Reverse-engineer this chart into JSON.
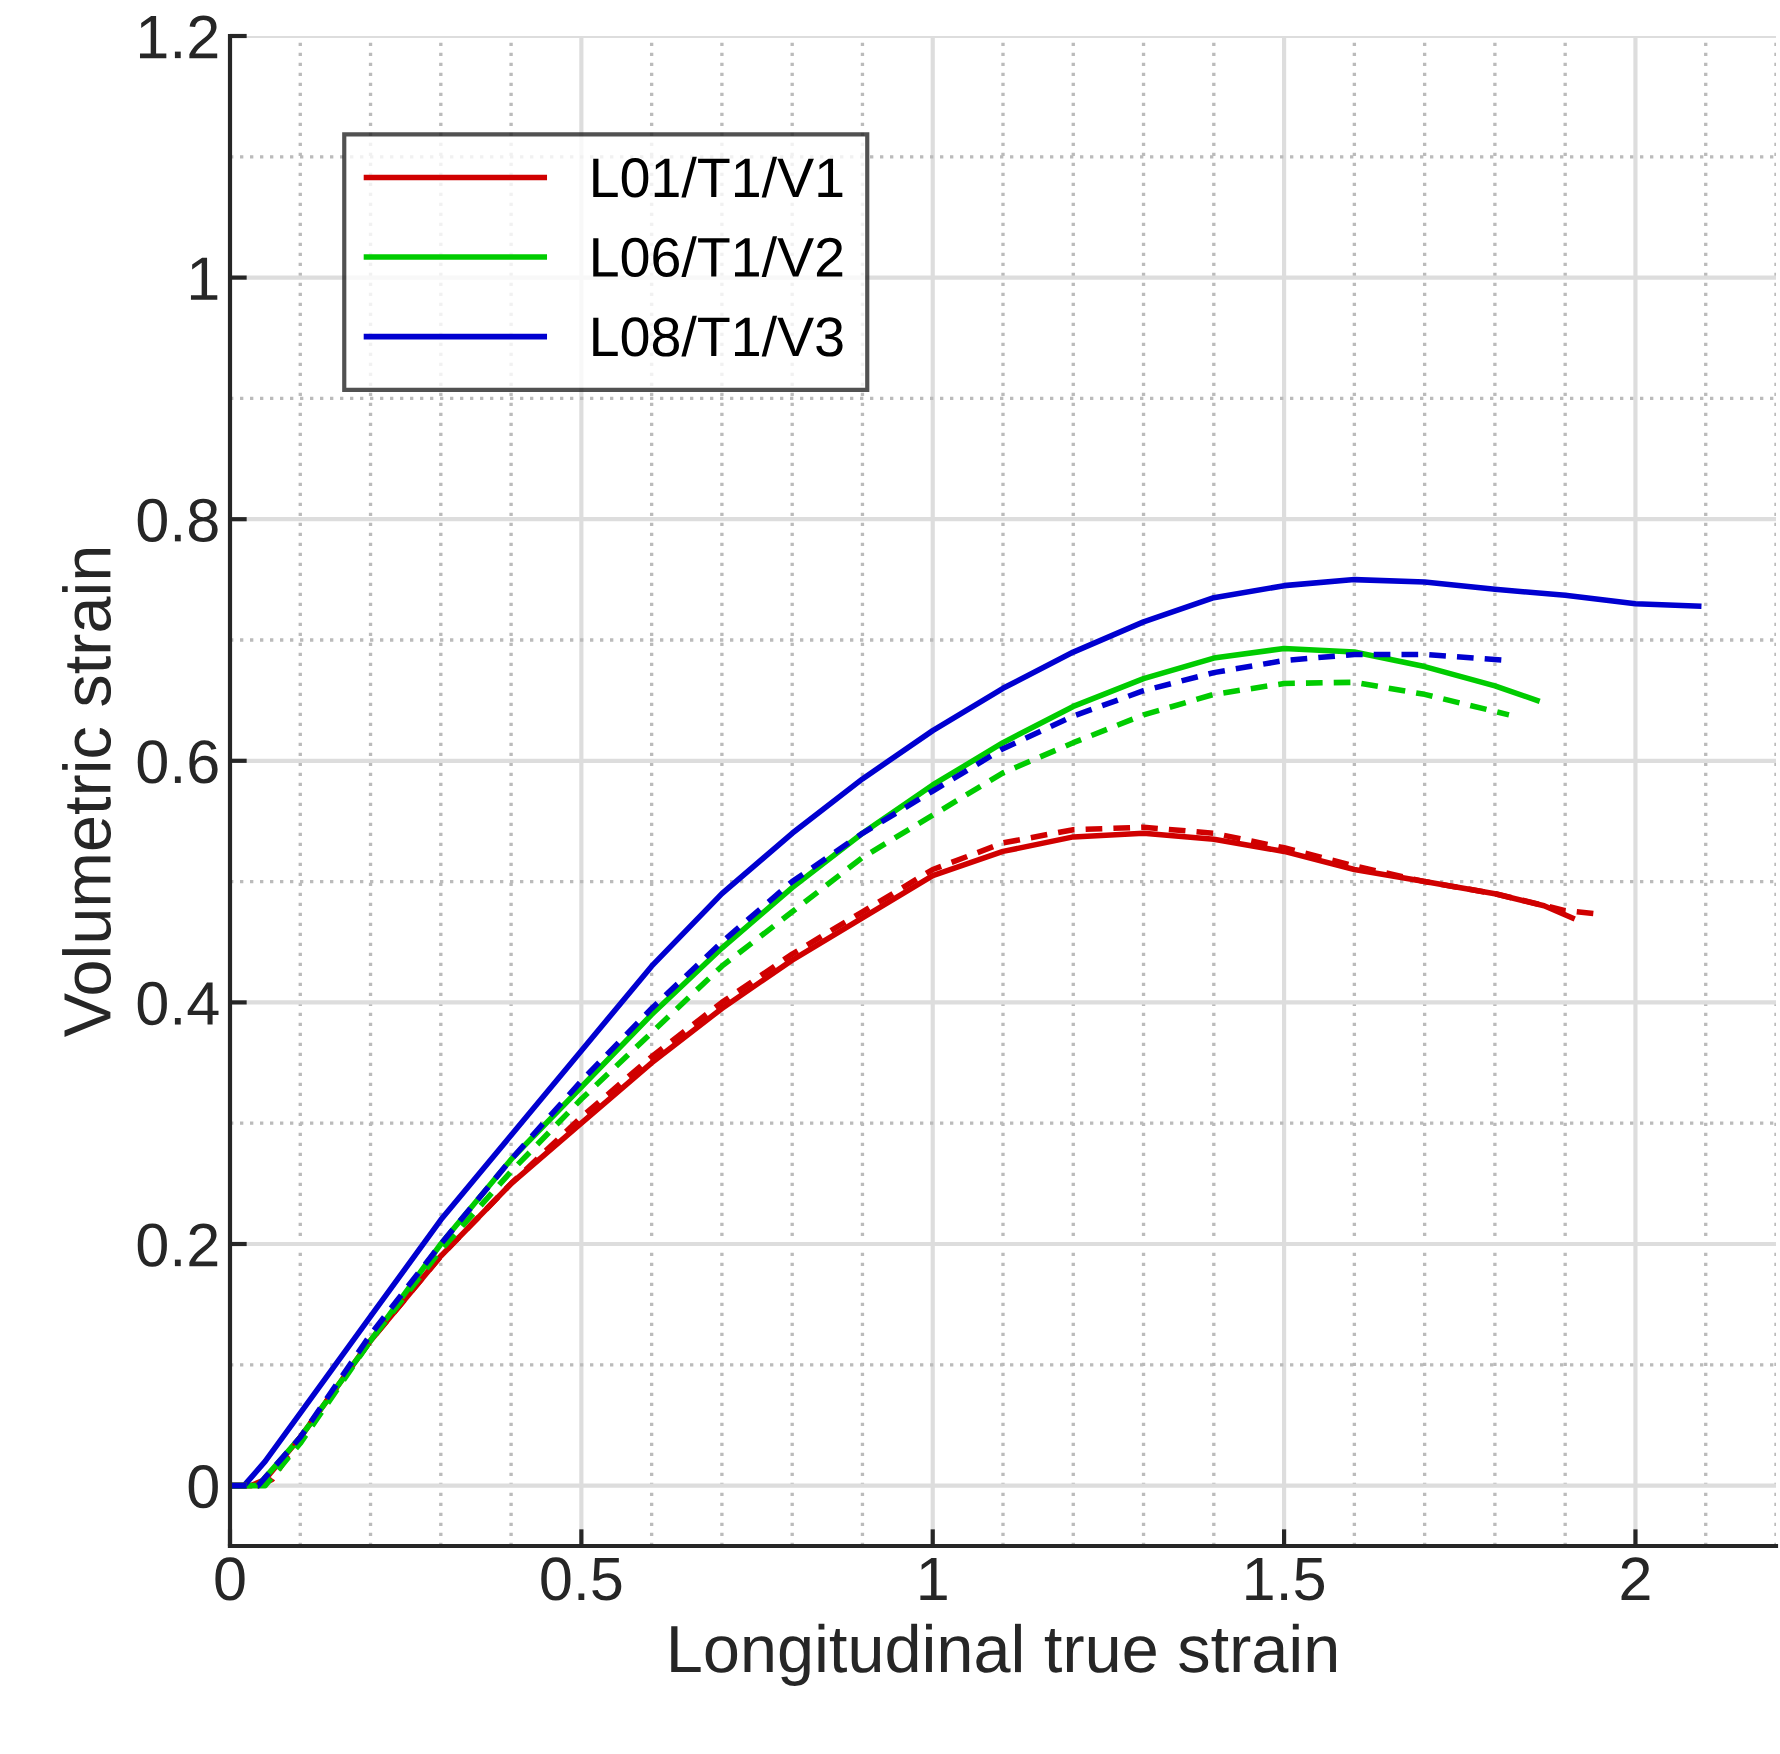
{
  "chart_data": {
    "type": "line",
    "xlabel": "Longitudinal true strain",
    "ylabel": "Volumetric strain",
    "xlim": [
      0,
      2.2
    ],
    "ylim": [
      -0.05,
      1.2
    ],
    "xticks": [
      0,
      0.5,
      1,
      1.5,
      2
    ],
    "yticks": [
      0,
      0.2,
      0.4,
      0.6,
      0.8,
      1,
      1.2
    ],
    "grid": true,
    "legend": "top left",
    "marker": "none",
    "series": [
      {
        "name": "L01/T1/V1",
        "color": "#d00000",
        "line_style": "solid",
        "x": [
          0,
          0.03,
          0.05,
          0.1,
          0.2,
          0.3,
          0.4,
          0.5,
          0.6,
          0.7,
          0.8,
          0.9,
          1.0,
          1.1,
          1.2,
          1.3,
          1.4,
          1.5,
          1.6,
          1.7,
          1.8,
          1.87,
          1.91
        ],
        "values": [
          0,
          0,
          0.005,
          0.04,
          0.12,
          0.19,
          0.25,
          0.3,
          0.35,
          0.395,
          0.435,
          0.47,
          0.505,
          0.525,
          0.537,
          0.54,
          0.535,
          0.525,
          0.51,
          0.5,
          0.49,
          0.48,
          0.47
        ]
      },
      {
        "name": "L06/T1/V2",
        "color": "#00cc00",
        "line_style": "solid",
        "x": [
          0,
          0.04,
          0.1,
          0.2,
          0.3,
          0.4,
          0.5,
          0.6,
          0.7,
          0.8,
          0.9,
          1.0,
          1.1,
          1.2,
          1.3,
          1.4,
          1.5,
          1.6,
          1.7,
          1.8,
          1.86
        ],
        "values": [
          0,
          0,
          0.04,
          0.12,
          0.2,
          0.27,
          0.33,
          0.39,
          0.445,
          0.495,
          0.54,
          0.58,
          0.615,
          0.645,
          0.668,
          0.685,
          0.693,
          0.69,
          0.678,
          0.662,
          0.65
        ]
      },
      {
        "name": "L08/T1/V3",
        "color": "#0000d0",
        "line_style": "solid",
        "x": [
          0,
          0.02,
          0.05,
          0.1,
          0.2,
          0.3,
          0.4,
          0.5,
          0.6,
          0.7,
          0.8,
          0.9,
          1.0,
          1.1,
          1.2,
          1.3,
          1.4,
          1.5,
          1.6,
          1.7,
          1.8,
          1.9,
          2.0,
          2.09
        ],
        "values": [
          0,
          0,
          0.02,
          0.06,
          0.14,
          0.22,
          0.29,
          0.36,
          0.43,
          0.49,
          0.54,
          0.585,
          0.625,
          0.66,
          0.69,
          0.715,
          0.735,
          0.745,
          0.75,
          0.748,
          0.742,
          0.737,
          0.73,
          0.728
        ]
      },
      {
        "color": "#d00000",
        "line_style": "dashed",
        "x": [
          0,
          0.04,
          0.06,
          0.1,
          0.2,
          0.3,
          0.4,
          0.5,
          0.6,
          0.7,
          0.8,
          0.9,
          1.0,
          1.1,
          1.2,
          1.3,
          1.4,
          1.5,
          1.6,
          1.7,
          1.8,
          1.9,
          1.95
        ],
        "values": [
          0,
          0,
          0.005,
          0.04,
          0.12,
          0.19,
          0.25,
          0.305,
          0.355,
          0.4,
          0.44,
          0.475,
          0.51,
          0.532,
          0.543,
          0.545,
          0.54,
          0.528,
          0.513,
          0.5,
          0.49,
          0.476,
          0.473
        ]
      },
      {
        "color": "#00cc00",
        "line_style": "dashed",
        "x": [
          0,
          0.05,
          0.1,
          0.2,
          0.3,
          0.4,
          0.5,
          0.6,
          0.7,
          0.8,
          0.9,
          1.0,
          1.1,
          1.2,
          1.3,
          1.4,
          1.5,
          1.6,
          1.7,
          1.82
        ],
        "values": [
          0,
          0,
          0.035,
          0.12,
          0.195,
          0.26,
          0.32,
          0.375,
          0.43,
          0.475,
          0.52,
          0.555,
          0.59,
          0.615,
          0.638,
          0.655,
          0.664,
          0.665,
          0.655,
          0.638
        ]
      },
      {
        "color": "#0000d0",
        "line_style": "dashed",
        "x": [
          0,
          0.04,
          0.1,
          0.2,
          0.3,
          0.4,
          0.5,
          0.6,
          0.7,
          0.8,
          0.9,
          1.0,
          1.1,
          1.2,
          1.3,
          1.4,
          1.5,
          1.6,
          1.7,
          1.82
        ],
        "values": [
          0,
          0,
          0.04,
          0.125,
          0.2,
          0.27,
          0.335,
          0.395,
          0.45,
          0.5,
          0.54,
          0.575,
          0.61,
          0.637,
          0.658,
          0.673,
          0.683,
          0.688,
          0.688,
          0.683
        ]
      }
    ]
  }
}
